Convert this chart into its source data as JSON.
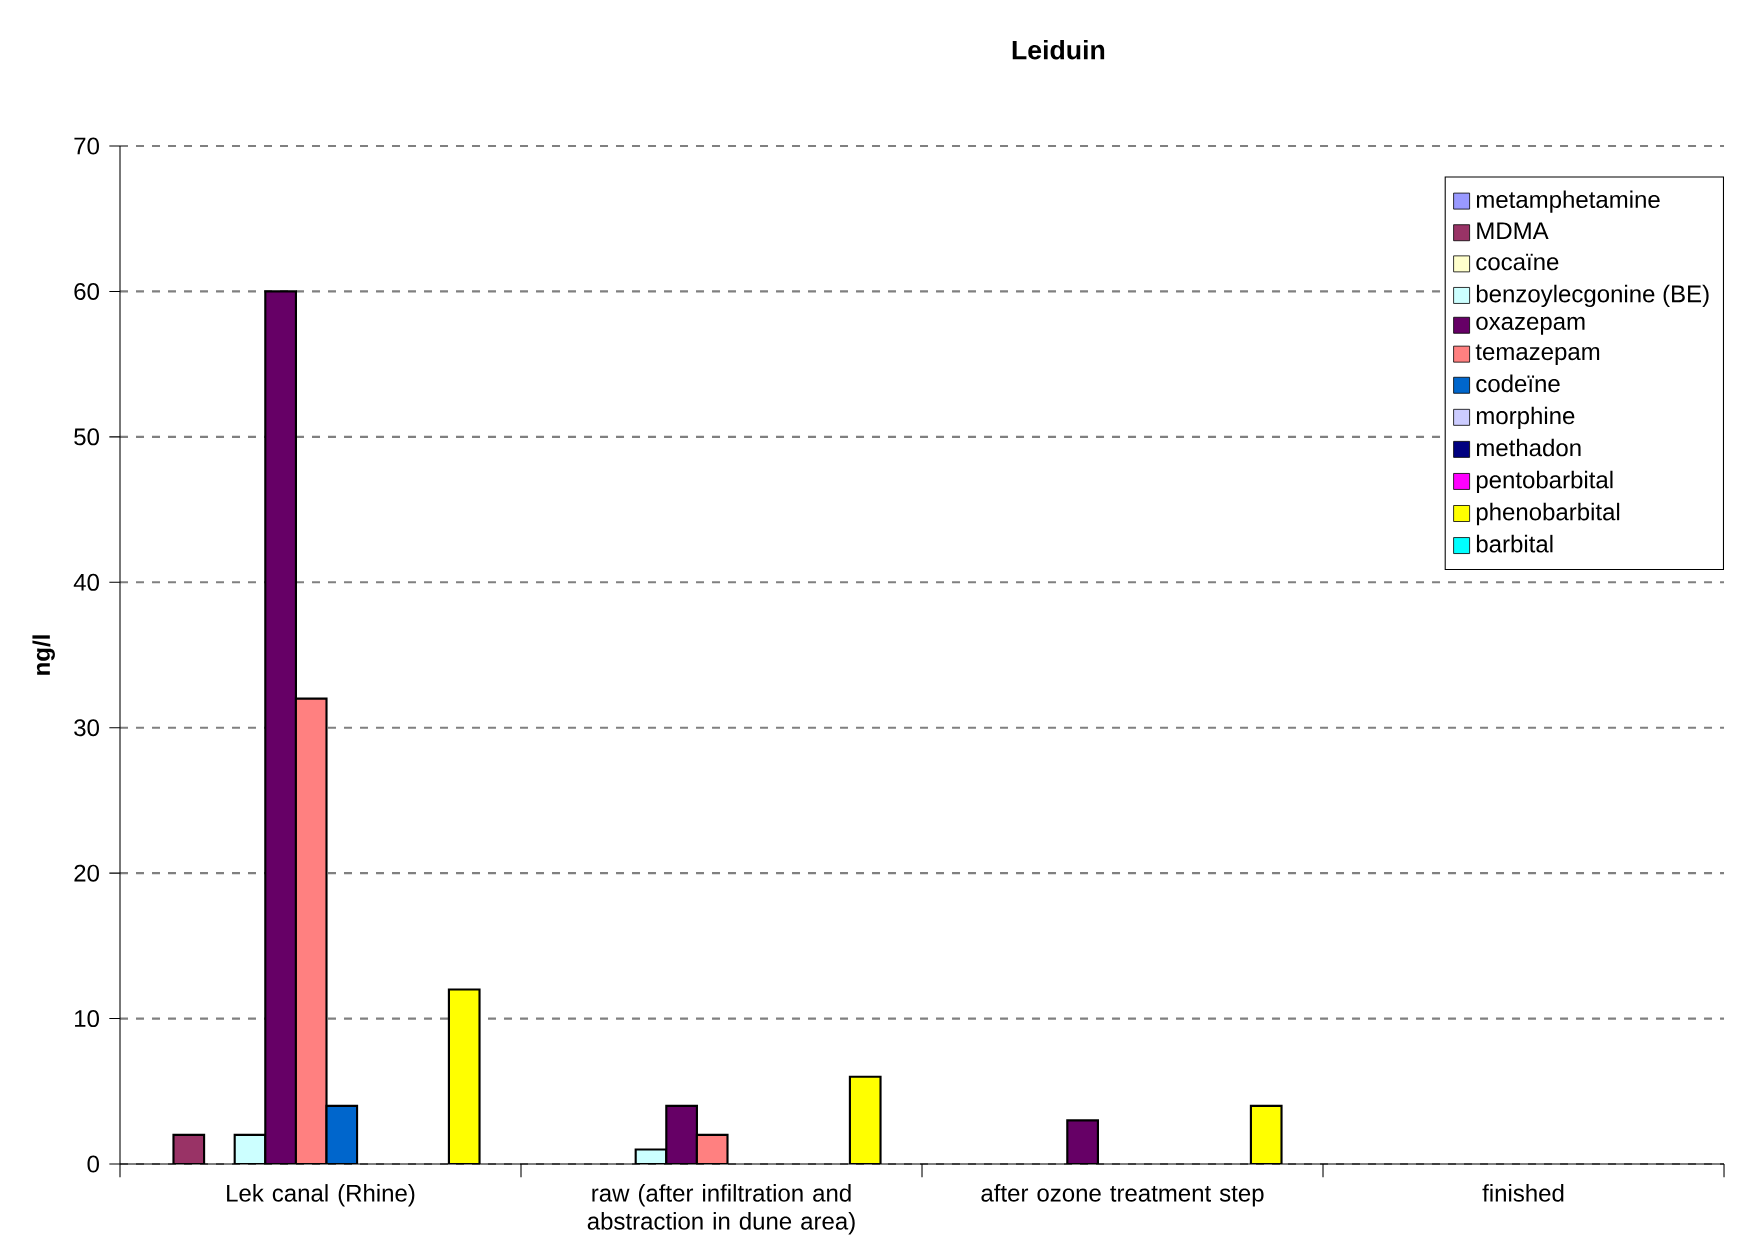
{
  "chart_data": {
    "type": "bar",
    "title": "Leiduin",
    "ylabel": "ng/l",
    "categories": [
      "Lek canal (Rhine)",
      "raw (after infiltration and abstraction in dune area)",
      "after ozone treatment step",
      "finished"
    ],
    "series": [
      {
        "name": "metamphetamine",
        "color": "#9999ff",
        "values": [
          null,
          null,
          null,
          null
        ]
      },
      {
        "name": "MDMA",
        "color": "#993366",
        "values": [
          2,
          null,
          null,
          null
        ]
      },
      {
        "name": "cocaïne",
        "color": "#ffffcc",
        "values": [
          null,
          null,
          null,
          null
        ]
      },
      {
        "name": "benzoylecgonine (BE)",
        "color": "#ccffff",
        "values": [
          2,
          1,
          null,
          null
        ]
      },
      {
        "name": "oxazepam",
        "color": "#660066",
        "values": [
          60,
          4,
          3,
          null
        ]
      },
      {
        "name": "temazepam",
        "color": "#ff8080",
        "values": [
          32,
          2,
          null,
          null
        ]
      },
      {
        "name": "codeïne",
        "color": "#0066cc",
        "values": [
          4,
          null,
          null,
          null
        ]
      },
      {
        "name": "morphine",
        "color": "#ccccff",
        "values": [
          null,
          null,
          null,
          null
        ]
      },
      {
        "name": "methadon",
        "color": "#000080",
        "values": [
          null,
          null,
          null,
          null
        ]
      },
      {
        "name": "pentobarbital",
        "color": "#ff00ff",
        "values": [
          null,
          null,
          null,
          null
        ]
      },
      {
        "name": "phenobarbital",
        "color": "#ffff00",
        "values": [
          12,
          6,
          4,
          null
        ]
      },
      {
        "name": "barbital",
        "color": "#00ffff",
        "values": [
          null,
          null,
          null,
          null
        ]
      }
    ],
    "ylim": [
      0,
      70
    ],
    "yticks": [
      0,
      10,
      20,
      30,
      40,
      50,
      60,
      70
    ],
    "grid": "y",
    "legend": "top right"
  }
}
